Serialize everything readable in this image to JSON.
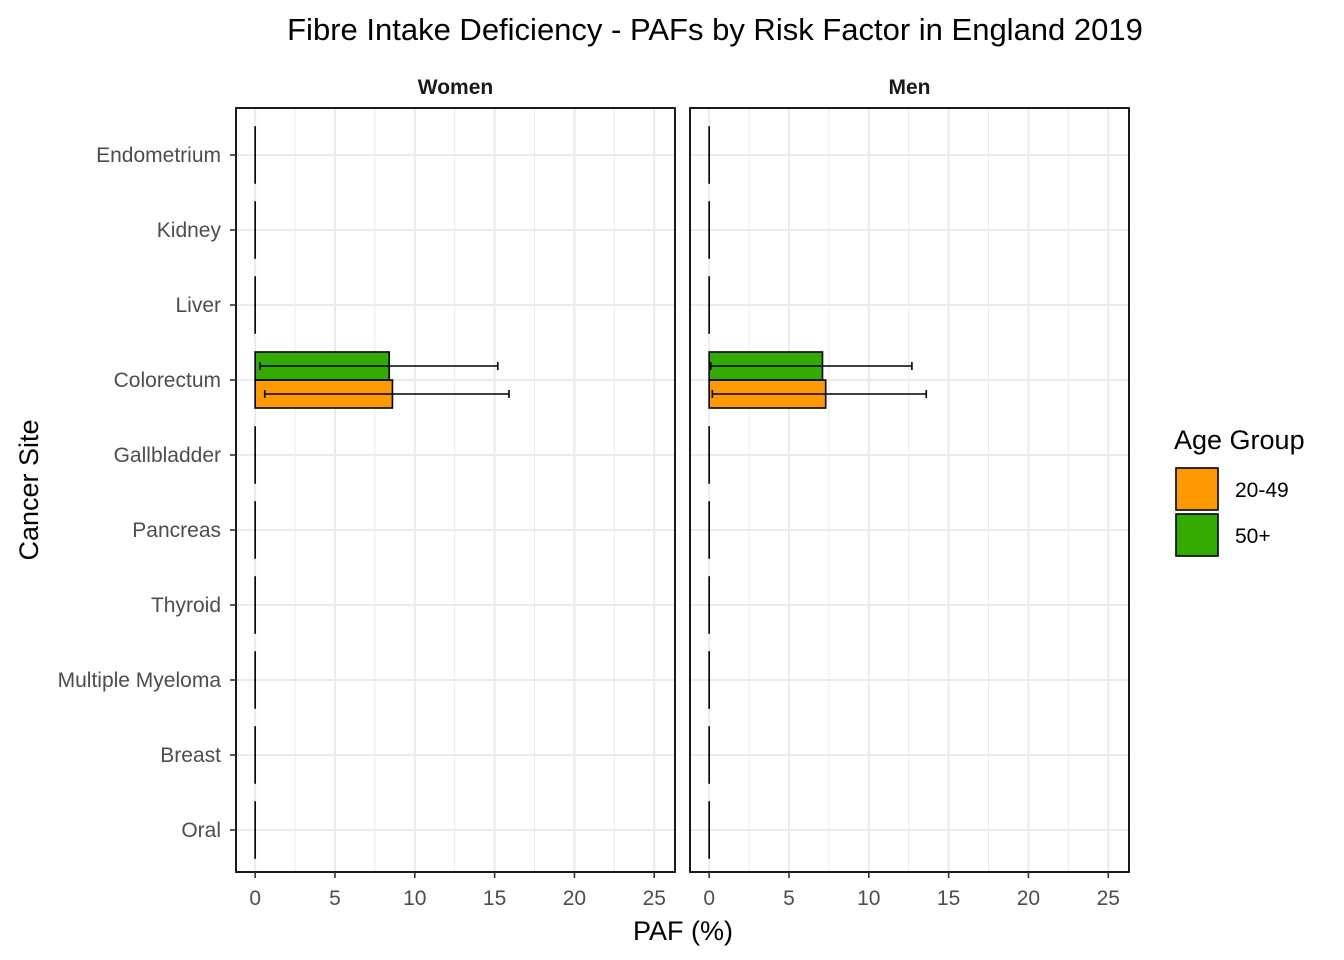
{
  "chart_data": {
    "type": "bar",
    "orientation": "horizontal",
    "title": "Fibre Intake Deficiency  - PAFs by Risk Factor in England 2019",
    "xlabel": "PAF (%)",
    "ylabel": "Cancer Site",
    "xlim": [
      -1.2,
      26.3
    ],
    "xticks": [
      0,
      5,
      10,
      15,
      20,
      25
    ],
    "grid": true,
    "categories": [
      "Endometrium",
      "Kidney",
      "Liver",
      "Colorectum",
      "Gallbladder",
      "Pancreas",
      "Thyroid",
      "Multiple Myeloma",
      "Breast",
      "Oral"
    ],
    "legend": {
      "title": "Age Group",
      "position": "right",
      "entries": [
        {
          "label": "20-49",
          "color": "#ff9900"
        },
        {
          "label": "50+",
          "color": "#33aa00"
        }
      ]
    },
    "panels": [
      {
        "name": "Women",
        "series": [
          {
            "name": "20-49",
            "color": "#ff9900",
            "values": [
              0,
              0,
              0,
              8.6,
              0,
              0,
              0,
              0,
              0,
              0
            ],
            "lower": [
              0,
              0,
              0,
              0.6,
              0,
              0,
              0,
              0,
              0,
              0
            ],
            "upper": [
              0,
              0,
              0,
              15.9,
              0,
              0,
              0,
              0,
              0,
              0
            ]
          },
          {
            "name": "50+",
            "color": "#33aa00",
            "values": [
              0,
              0,
              0,
              8.4,
              0,
              0,
              0,
              0,
              0,
              0
            ],
            "lower": [
              0,
              0,
              0,
              0.3,
              0,
              0,
              0,
              0,
              0,
              0
            ],
            "upper": [
              0,
              0,
              0,
              15.2,
              0,
              0,
              0,
              0,
              0,
              0
            ]
          }
        ]
      },
      {
        "name": "Men",
        "series": [
          {
            "name": "20-49",
            "color": "#ff9900",
            "values": [
              0,
              0,
              0,
              7.3,
              0,
              0,
              0,
              0,
              0,
              0
            ],
            "lower": [
              0,
              0,
              0,
              0.2,
              0,
              0,
              0,
              0,
              0,
              0
            ],
            "upper": [
              0,
              0,
              0,
              13.6,
              0,
              0,
              0,
              0,
              0,
              0
            ]
          },
          {
            "name": "50+",
            "color": "#33aa00",
            "values": [
              0,
              0,
              0,
              7.1,
              0,
              0,
              0,
              0,
              0,
              0
            ],
            "lower": [
              0,
              0,
              0,
              0.1,
              0,
              0,
              0,
              0,
              0,
              0
            ],
            "upper": [
              0,
              0,
              0,
              12.7,
              0,
              0,
              0,
              0,
              0,
              0
            ]
          }
        ]
      }
    ]
  }
}
